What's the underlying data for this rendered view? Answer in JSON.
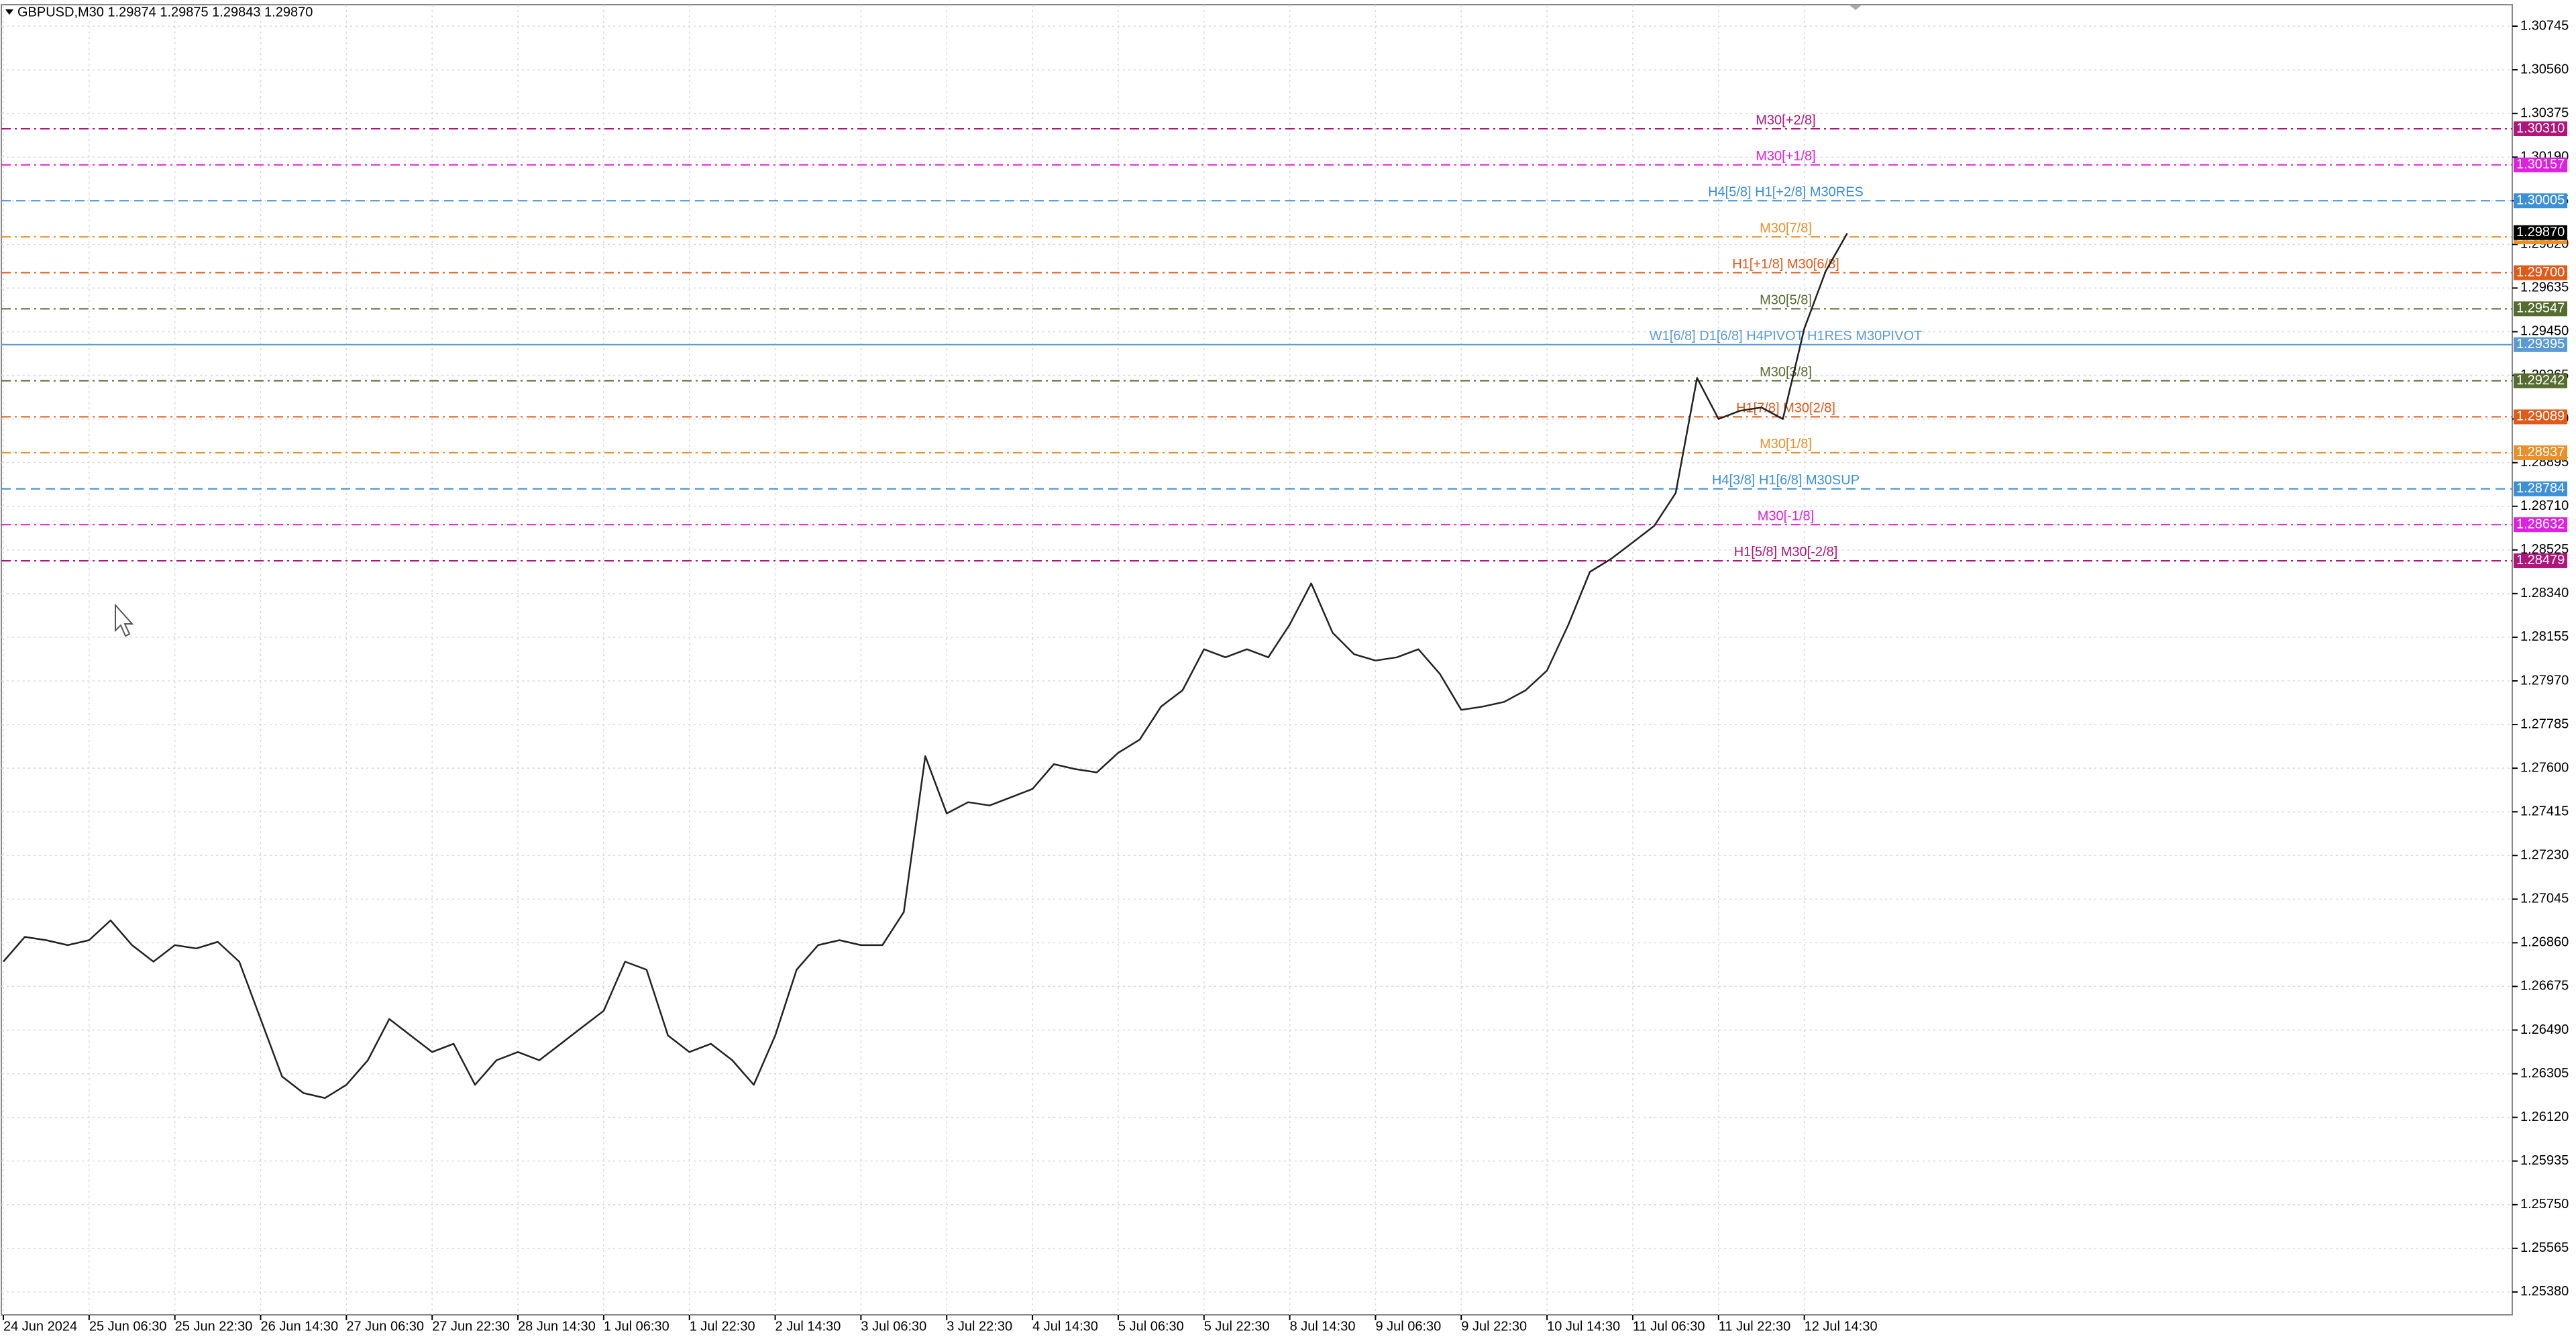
{
  "chart_data": {
    "type": "line",
    "title": "GBPUSD,M30  1.29874 1.29875 1.29843 1.29870",
    "categories": [
      "24 Jun 2024",
      null,
      null,
      null,
      "25 Jun 06:30",
      null,
      null,
      null,
      "25 Jun 22:30",
      null,
      null,
      null,
      "26 Jun 14:30",
      null,
      null,
      null,
      "27 Jun 06:30",
      null,
      null,
      null,
      "27 Jun 22:30",
      null,
      null,
      null,
      "28 Jun 14:30",
      null,
      null,
      null,
      "1 Jul 06:30",
      null,
      null,
      null,
      "1 Jul 22:30",
      null,
      null,
      null,
      "2 Jul 14:30",
      null,
      null,
      null,
      "3 Jul 06:30",
      null,
      null,
      null,
      "3 Jul 22:30",
      null,
      null,
      null,
      "4 Jul 14:30",
      null,
      null,
      null,
      "5 Jul 06:30",
      null,
      null,
      null,
      "5 Jul 22:30",
      null,
      null,
      null,
      "8 Jul 14:30",
      null,
      null,
      null,
      "9 Jul 06:30",
      null,
      null,
      null,
      "9 Jul 22:30",
      null,
      null,
      null,
      "10 Jul 14:30",
      null,
      null,
      null,
      "11 Jul 06:30",
      null,
      null,
      null,
      "11 Jul 22:30",
      null,
      null,
      null,
      "12 Jul 14:30",
      null,
      null
    ],
    "values": [
      1.2678,
      1.26885,
      1.26871,
      1.2685,
      1.26871,
      1.26955,
      1.2685,
      1.2678,
      1.2685,
      1.26836,
      1.26864,
      1.2678,
      1.26537,
      1.26293,
      1.26223,
      1.26202,
      1.26258,
      1.26362,
      1.26537,
      1.26467,
      1.26397,
      1.26432,
      1.26258,
      1.26362,
      1.26397,
      1.26362,
      1.26432,
      1.26502,
      1.26572,
      1.2678,
      1.26746,
      1.26467,
      1.26397,
      1.26432,
      1.26362,
      1.26258,
      1.26467,
      1.26746,
      1.2685,
      1.26871,
      1.2685,
      1.2685,
      1.2699,
      1.27651,
      1.27408,
      1.27456,
      1.27442,
      1.27477,
      1.27512,
      1.27617,
      1.27596,
      1.27582,
      1.27665,
      1.27721,
      1.27861,
      1.2793,
      1.28104,
      1.2807,
      1.28104,
      1.2807,
      1.28209,
      1.28383,
      1.28174,
      1.28083,
      1.28056,
      1.2807,
      1.28104,
      1.28,
      1.27847,
      1.27861,
      1.27881,
      1.2793,
      1.28014,
      1.28209,
      1.28432,
      1.28488,
      1.28557,
      1.28627,
      1.28766,
      1.29254,
      1.2908,
      1.29115,
      1.29129,
      1.2908,
      1.29463,
      1.29707,
      1.29867
    ],
    "color": "#222222",
    "ylim": [
      1.25283,
      1.30836
    ],
    "yticks": [
      {
        "value": 1.2538,
        "label": "1.25380"
      },
      1.25565,
      {
        "value": 1.2575,
        "label": "1.25750"
      },
      1.25935,
      {
        "value": 1.2612,
        "label": "1.26120"
      },
      1.26305,
      {
        "value": 1.2649,
        "label": "1.26490"
      },
      1.26675,
      {
        "value": 1.2686,
        "label": "1.26860"
      },
      1.27045,
      {
        "value": 1.2723,
        "label": "1.27230"
      },
      1.27415,
      {
        "value": 1.276,
        "label": "1.27600"
      },
      1.27785,
      {
        "value": 1.2797,
        "label": "1.27970"
      },
      1.28155,
      {
        "value": 1.2834,
        "label": "1.28340"
      },
      1.28525,
      {
        "value": 1.2871,
        "label": "1.28710"
      },
      1.28895,
      {
        "value": 1.2908,
        "label": "1.29080"
      },
      1.29265,
      {
        "value": 1.2945,
        "label": "1.29450"
      },
      1.29635,
      {
        "value": 1.2982,
        "label": "1.29820"
      },
      1.30005,
      {
        "value": 1.3019,
        "label": "1.30190"
      },
      1.30375,
      {
        "value": 1.3056,
        "label": "1.30560"
      },
      1.30745
    ],
    "grid": true,
    "last_price": {
      "value": 1.2987,
      "label": "1.29870"
    },
    "levels": [
      {
        "name": "M30[+2/8]",
        "value": 1.3031,
        "value_label": "1.30310",
        "color": "#b0157a",
        "dash": "dashdot"
      },
      {
        "name": "M30[+1/8]",
        "value": 1.30157,
        "color": "#e020e0",
        "dash": "dashdot"
      },
      {
        "name": "H4[5/8] H1[+2/8] M30RES",
        "value": 1.30005,
        "color": "#3d8fd6",
        "dash": "dash"
      },
      {
        "name": "M30[7/8]",
        "value": 1.29852,
        "color": "#e8902a",
        "dash": "dashdot"
      },
      {
        "name": "H1[+1/8] M30[6/8]",
        "value": 1.297,
        "value_label": "1.29700",
        "color": "#e05a1a",
        "dash": "dashdot"
      },
      {
        "name": "M30[5/8]",
        "value": 1.29547,
        "color": "#556b2f",
        "dash": "dashdot"
      },
      {
        "name": "W1[6/8] D1[6/8] H4PIVOT H1RES M30PIVOT",
        "value": 1.29395,
        "color": "#5b9bd5",
        "dash": "solid"
      },
      {
        "name": "M30[3/8]",
        "value": 1.29242,
        "color": "#556b2f",
        "dash": "dashdot"
      },
      {
        "name": "H1[7/8] M30[2/8]",
        "value": 1.29089,
        "color": "#e05a1a",
        "dash": "dashdot"
      },
      {
        "name": "M30[1/8]",
        "value": 1.28937,
        "color": "#e8902a",
        "dash": "dashdot"
      },
      {
        "name": "H4[3/8] H1[6/8] M30SUP",
        "value": 1.28784,
        "color": "#3d8fd6",
        "dash": "dash"
      },
      {
        "name": "M30[-1/8]",
        "value": 1.28632,
        "color": "#e020e0",
        "dash": "dashdot"
      },
      {
        "name": "H1[5/8] M30[-2/8]",
        "value": 1.28479,
        "color": "#b0157a",
        "dash": "dashdot"
      }
    ]
  }
}
